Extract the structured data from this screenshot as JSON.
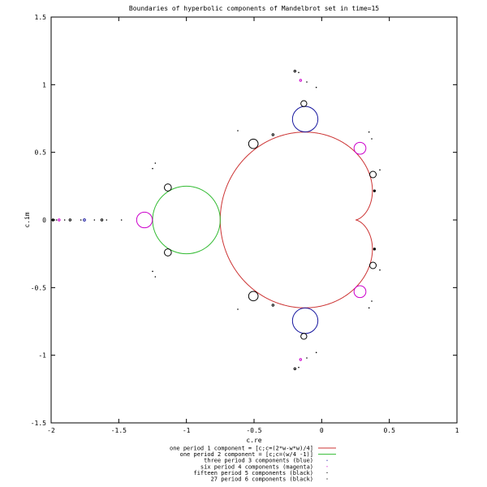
{
  "chart_data": {
    "type": "line",
    "title": "Boundaries of hyperbolic components of Mandelbrot set in time=15",
    "xlabel": "c.re",
    "ylabel": "c.im",
    "xlim": [
      -2,
      1
    ],
    "ylim": [
      -1.5,
      1.5
    ],
    "xticks": [
      -2,
      -1.5,
      -1,
      -0.5,
      0,
      0.5,
      1
    ],
    "yticks": [
      -1.5,
      -1,
      -0.5,
      0,
      0.5,
      1,
      1.5
    ],
    "xtick_labels": [
      "-2",
      "-1.5",
      "-1",
      "-0.5",
      "0",
      "0.5",
      "1"
    ],
    "ytick_labels": [
      "-1.5",
      "-1",
      "-0.5",
      "0",
      "0.5",
      "1",
      "1.5"
    ],
    "grid": false,
    "legend_position": "bottom",
    "series": [
      {
        "name": "one period 1 component = [c;c=(2*w-w*w)/4]",
        "color": "#cc3333",
        "shape": "cardioid",
        "centers": [
          [
            0.25,
            0
          ]
        ],
        "radius": 0.5
      },
      {
        "name": "one period 2 component = [c;c=(w/4 -1)]",
        "color": "#33bb33",
        "shape": "circle",
        "centers": [
          [
            -1,
            0
          ]
        ],
        "radius": 0.25
      },
      {
        "name": "three period 3 components (blue)",
        "color": "#1a1aa0",
        "shape": "circle",
        "centers": [
          [
            -0.122,
            0.745
          ],
          [
            -0.122,
            -0.745
          ],
          [
            -1.754,
            0
          ]
        ],
        "radii": [
          0.094,
          0.094,
          0.008
        ]
      },
      {
        "name": "six period 4 components (magenta)",
        "color": "#cc00cc",
        "shape": "circle",
        "centers": [
          [
            -1.31,
            0
          ],
          [
            0.283,
            0.53
          ],
          [
            0.283,
            -0.53
          ],
          [
            -0.156,
            1.032
          ],
          [
            -0.156,
            -1.032
          ],
          [
            -1.941,
            0
          ]
        ],
        "radii": [
          0.058,
          0.044,
          0.044,
          0.006,
          0.006,
          0.003
        ]
      },
      {
        "name": "fifteen period 5 components (black)",
        "color": "#000000",
        "shape": "circle",
        "centers": [
          [
            -0.505,
            0.563
          ],
          [
            -0.505,
            -0.563
          ],
          [
            0.379,
            0.336
          ],
          [
            0.379,
            -0.336
          ],
          [
            -1.137,
            0.24
          ],
          [
            -1.137,
            -0.24
          ],
          [
            -0.132,
            0.86
          ],
          [
            -0.132,
            -0.86
          ],
          [
            -1.625,
            0
          ],
          [
            -1.986,
            0
          ],
          [
            -0.198,
            1.1
          ],
          [
            -0.198,
            -1.1
          ],
          [
            -0.36,
            0.63
          ],
          [
            -0.36,
            -0.63
          ],
          [
            -1.86,
            0
          ]
        ],
        "radii": [
          0.035,
          0.035,
          0.024,
          0.024,
          0.026,
          0.026,
          0.022,
          0.022,
          0.004,
          0.002,
          0.003,
          0.003,
          0.004,
          0.004,
          0.003
        ]
      },
      {
        "name": "27 period 6 components (black)",
        "color": "#000000",
        "shape": "dot",
        "centers": [
          [
            0.39,
            0.215
          ],
          [
            0.39,
            -0.215
          ],
          [
            0.43,
            0.37
          ],
          [
            0.43,
            -0.37
          ],
          [
            -0.62,
            0.66
          ],
          [
            -0.62,
            -0.66
          ],
          [
            -1.23,
            0.42
          ],
          [
            -1.23,
            -0.42
          ],
          [
            -1.25,
            0.38
          ],
          [
            -1.25,
            -0.38
          ],
          [
            0.35,
            0.65
          ],
          [
            0.35,
            -0.65
          ],
          [
            0.37,
            0.6
          ],
          [
            0.37,
            -0.6
          ],
          [
            -0.04,
            0.98
          ],
          [
            -0.04,
            -0.98
          ],
          [
            -0.17,
            1.09
          ],
          [
            -0.17,
            -1.09
          ],
          [
            -0.11,
            1.02
          ],
          [
            -0.11,
            -1.02
          ],
          [
            -1.48,
            0
          ],
          [
            -1.59,
            0
          ],
          [
            -1.68,
            0
          ],
          [
            -1.78,
            0
          ],
          [
            -1.9,
            0
          ],
          [
            -1.96,
            0
          ],
          [
            -1.99,
            0
          ]
        ],
        "radii": [
          0.01,
          0.01,
          0.004,
          0.004,
          0.004,
          0.004,
          0.003,
          0.003,
          0.003,
          0.003,
          0.004,
          0.004,
          0.003,
          0.003,
          0.003,
          0.003,
          0.002,
          0.002,
          0.002,
          0.002,
          0.003,
          0.002,
          0.002,
          0.002,
          0.002,
          0.002,
          0.002
        ]
      }
    ]
  }
}
